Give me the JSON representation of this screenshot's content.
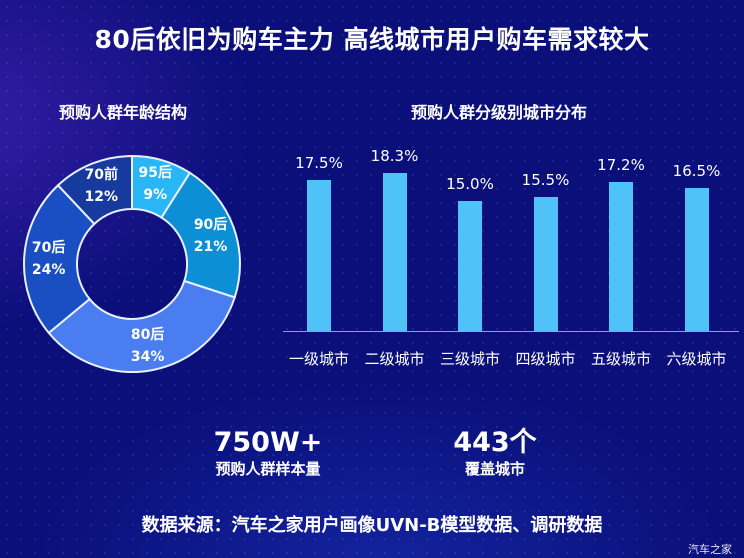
{
  "title": "80后依旧为购车主力  高线城市用户购车需求较大",
  "left_panel": {
    "subtitle": "预购人群年龄结构",
    "segments": [
      {
        "name": "95后",
        "value": "9%",
        "color": "#29b6f6"
      },
      {
        "name": "90后",
        "value": "21%",
        "color": "#0d8fd6"
      },
      {
        "name": "80后",
        "value": "34%",
        "color": "#4a7ef0"
      },
      {
        "name": "70后",
        "value": "24%",
        "color": "#1a4fc4"
      },
      {
        "name": "70前",
        "value": "12%",
        "color": "#173a9e"
      }
    ]
  },
  "right_panel": {
    "subtitle": "预购人群分级别城市分布",
    "bars": [
      {
        "category": "一级城市",
        "label": "17.5%"
      },
      {
        "category": "二级城市",
        "label": "18.3%"
      },
      {
        "category": "三级城市",
        "label": "15.0%"
      },
      {
        "category": "四级城市",
        "label": "15.5%"
      },
      {
        "category": "五级城市",
        "label": "17.2%"
      },
      {
        "category": "六级城市",
        "label": "16.5%"
      }
    ]
  },
  "stats": [
    {
      "number": "750W+",
      "label": "预购人群样本量"
    },
    {
      "number": "443个",
      "label": "覆盖城市"
    }
  ],
  "source": "数据来源：汽车之家用户画像UVN-B模型数据、调研数据",
  "watermark": "汽车之家",
  "colors": {
    "background": "#0a0f7a",
    "bar": "#4fc3f7",
    "axis": "#7fa0ff"
  },
  "chart_data": [
    {
      "type": "pie",
      "subtype": "donut",
      "title": "预购人群年龄结构",
      "categories": [
        "95后",
        "90后",
        "80后",
        "70后",
        "70前"
      ],
      "values": [
        9,
        21,
        34,
        24,
        12
      ],
      "unit": "%"
    },
    {
      "type": "bar",
      "title": "预购人群分级别城市分布",
      "categories": [
        "一级城市",
        "二级城市",
        "三级城市",
        "四级城市",
        "五级城市",
        "六级城市"
      ],
      "values": [
        17.5,
        18.3,
        15.0,
        15.5,
        17.2,
        16.5
      ],
      "unit": "%",
      "xlabel": "",
      "ylabel": "",
      "grid": false,
      "data_labels": true
    }
  ]
}
